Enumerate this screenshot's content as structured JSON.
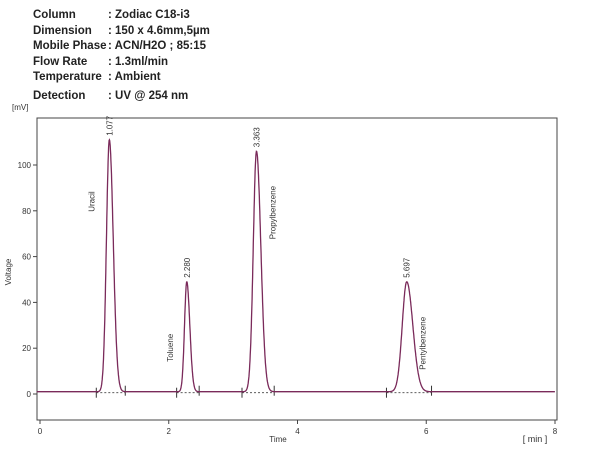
{
  "conditions": [
    {
      "label": "Column",
      "value": ": Zodiac C18-i3"
    },
    {
      "label": "Dimension",
      "value": ": 150 x 4.6mm,5µm"
    },
    {
      "label": "Mobile Phase",
      "value": ": ACN/H2O ; 85:15"
    },
    {
      "label": "Flow Rate",
      "value": ": 1.3ml/min"
    },
    {
      "label": "Temperature",
      "value": ": Ambient"
    },
    {
      "label": "Detection",
      "value": ": UV @ 254 nm"
    }
  ],
  "chart_data": {
    "type": "line",
    "title": "",
    "xlabel": "Time",
    "xunit": "[ min ]",
    "ylabel": "Voltage",
    "yunit": "[mV]",
    "xlim": [
      0,
      8
    ],
    "ylim": [
      -10,
      120
    ],
    "xticks": [
      0,
      2,
      4,
      6,
      8
    ],
    "yticks": [
      0,
      20,
      40,
      60,
      80,
      100
    ],
    "grid": false,
    "baseline": 1,
    "peaks": [
      {
        "name": "Uracil",
        "rt": 1.077,
        "rt_label": "1.077",
        "height": 110,
        "width": 0.045
      },
      {
        "name": "Toluene",
        "rt": 2.28,
        "rt_label": "2.280",
        "height": 48,
        "width": 0.035
      },
      {
        "name": "Propylbenzene",
        "rt": 3.363,
        "rt_label": "3.363",
        "height": 105,
        "width": 0.05
      },
      {
        "name": "Pentylbenzene",
        "rt": 5.697,
        "rt_label": "5.697",
        "height": 48,
        "width": 0.07
      }
    ]
  }
}
